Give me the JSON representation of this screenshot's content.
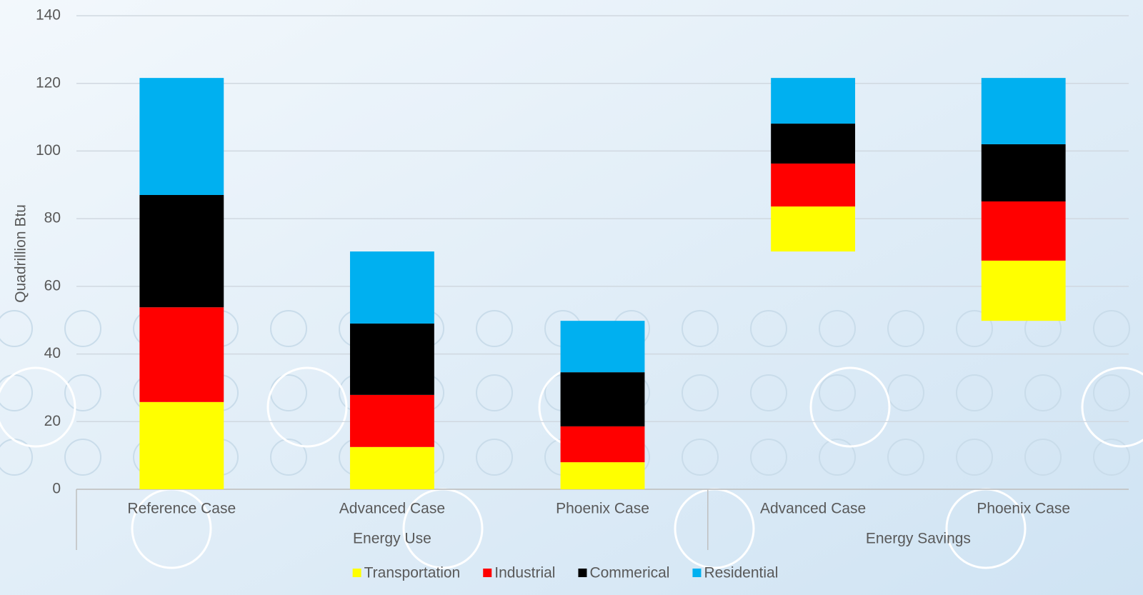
{
  "chart_data": {
    "type": "stacked_bar",
    "y_label": "Quadrillion Btu",
    "groups": [
      {
        "name": "Energy Use",
        "categories": [
          "Reference Case",
          "Advanced Case",
          "Phoenix Case"
        ]
      },
      {
        "name": "Energy Savings",
        "categories": [
          "Advanced Case",
          "Phoenix Case"
        ]
      }
    ],
    "series": [
      {
        "name": "Transportation",
        "color": "#ffff00",
        "values": [
          25.8,
          12.5,
          8.0,
          13.3,
          17.8
        ]
      },
      {
        "name": "Industrial",
        "color": "#ff0000",
        "values": [
          28.0,
          15.4,
          10.6,
          12.7,
          17.5
        ]
      },
      {
        "name": "Commerical",
        "color": "#000000",
        "values": [
          33.2,
          21.1,
          16.0,
          11.8,
          16.9
        ]
      },
      {
        "name": "Residential",
        "color": "#00b0f0",
        "values": [
          34.6,
          21.3,
          15.2,
          13.5,
          19.6
        ]
      }
    ],
    "ylim": [
      0,
      140
    ],
    "yticks": [
      0,
      20,
      40,
      60,
      80,
      100,
      120,
      140
    ],
    "grid": true,
    "legend": "bottom"
  }
}
